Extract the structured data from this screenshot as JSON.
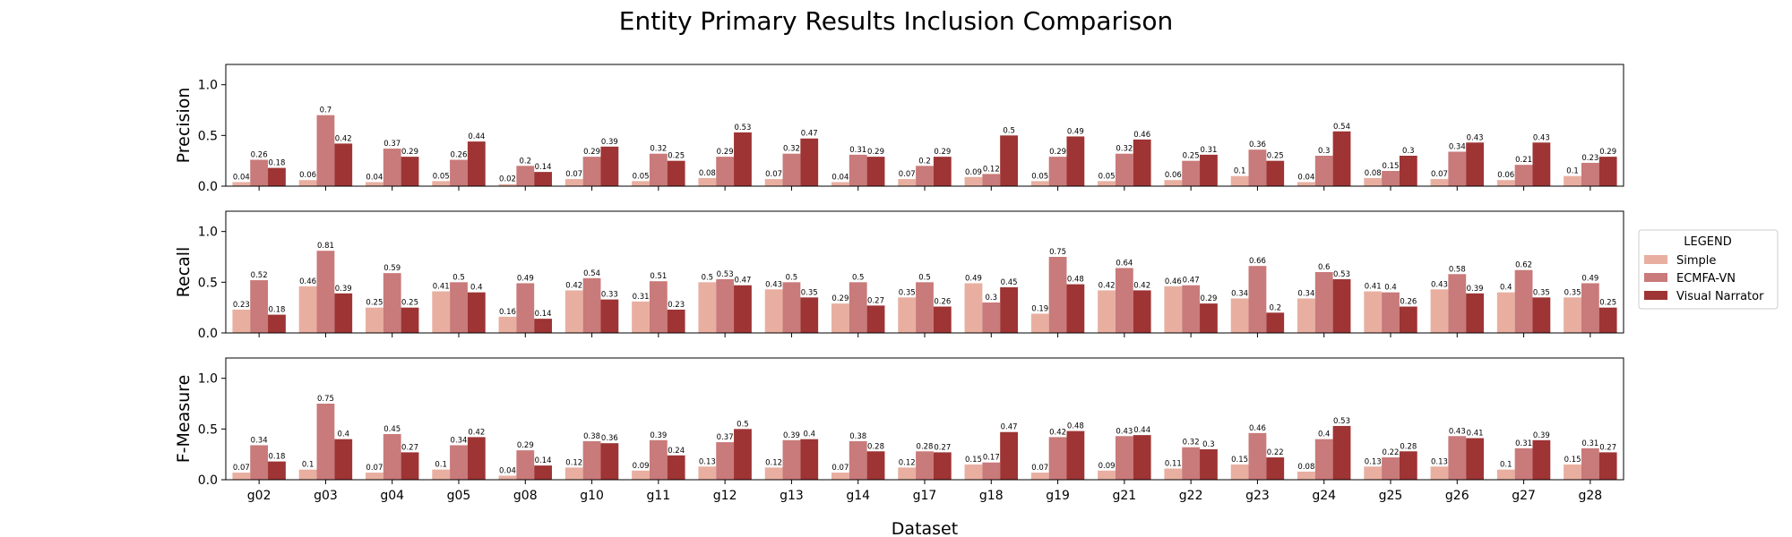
{
  "figure": {
    "title": "Entity Primary Results Inclusion Comparison",
    "xlabel": "Dataset"
  },
  "legend": {
    "title": "LEGEND",
    "placement": "right"
  },
  "colors": {
    "Simple": "#e8afa1",
    "ECMFA-VN": "#c97a7a",
    "Visual Narrator": "#9e3434"
  },
  "chart_data": [
    {
      "type": "bar",
      "ylabel": "Precision",
      "ylim": [
        0,
        1.2
      ],
      "yticks": [
        "0.0",
        "0.5",
        "1.0"
      ],
      "categories": [
        "g02",
        "g03",
        "g04",
        "g05",
        "g08",
        "g10",
        "g11",
        "g12",
        "g13",
        "g14",
        "g17",
        "g18",
        "g19",
        "g21",
        "g22",
        "g23",
        "g24",
        "g25",
        "g26",
        "g27",
        "g28"
      ],
      "series": [
        {
          "name": "Simple",
          "values": [
            0.04,
            0.06,
            0.04,
            0.05,
            0.02,
            0.07,
            0.05,
            0.08,
            0.07,
            0.04,
            0.07,
            0.09,
            0.05,
            0.05,
            0.06,
            0.1,
            0.04,
            0.08,
            0.07,
            0.06,
            0.1
          ]
        },
        {
          "name": "ECMFA-VN",
          "values": [
            0.26,
            0.7,
            0.37,
            0.26,
            0.2,
            0.29,
            0.32,
            0.29,
            0.32,
            0.31,
            0.2,
            0.12,
            0.29,
            0.32,
            0.25,
            0.36,
            0.3,
            0.15,
            0.34,
            0.21,
            0.23
          ]
        },
        {
          "name": "Visual Narrator",
          "values": [
            0.18,
            0.42,
            0.29,
            0.44,
            0.14,
            0.39,
            0.25,
            0.53,
            0.47,
            0.29,
            0.29,
            0.5,
            0.49,
            0.46,
            0.31,
            0.25,
            0.54,
            0.3,
            0.43,
            0.43,
            0.29
          ]
        }
      ]
    },
    {
      "type": "bar",
      "ylabel": "Recall",
      "ylim": [
        0,
        1.2
      ],
      "yticks": [
        "0.0",
        "0.5",
        "1.0"
      ],
      "categories": [
        "g02",
        "g03",
        "g04",
        "g05",
        "g08",
        "g10",
        "g11",
        "g12",
        "g13",
        "g14",
        "g17",
        "g18",
        "g19",
        "g21",
        "g22",
        "g23",
        "g24",
        "g25",
        "g26",
        "g27",
        "g28"
      ],
      "series": [
        {
          "name": "Simple",
          "values": [
            0.23,
            0.46,
            0.25,
            0.41,
            0.16,
            0.42,
            0.31,
            0.5,
            0.43,
            0.29,
            0.35,
            0.49,
            0.19,
            0.42,
            0.46,
            0.34,
            0.34,
            0.41,
            0.43,
            0.4,
            0.35
          ]
        },
        {
          "name": "ECMFA-VN",
          "values": [
            0.52,
            0.81,
            0.59,
            0.5,
            0.49,
            0.54,
            0.51,
            0.53,
            0.5,
            0.5,
            0.5,
            0.3,
            0.75,
            0.64,
            0.47,
            0.66,
            0.6,
            0.4,
            0.58,
            0.62,
            0.49
          ]
        },
        {
          "name": "Visual Narrator",
          "values": [
            0.18,
            0.39,
            0.25,
            0.4,
            0.14,
            0.33,
            0.23,
            0.47,
            0.35,
            0.27,
            0.26,
            0.45,
            0.48,
            0.42,
            0.29,
            0.2,
            0.53,
            0.26,
            0.39,
            0.35,
            0.25
          ]
        }
      ]
    },
    {
      "type": "bar",
      "ylabel": "F-Measure",
      "ylim": [
        0,
        1.2
      ],
      "yticks": [
        "0.0",
        "0.5",
        "1.0"
      ],
      "categories": [
        "g02",
        "g03",
        "g04",
        "g05",
        "g08",
        "g10",
        "g11",
        "g12",
        "g13",
        "g14",
        "g17",
        "g18",
        "g19",
        "g21",
        "g22",
        "g23",
        "g24",
        "g25",
        "g26",
        "g27",
        "g28"
      ],
      "series": [
        {
          "name": "Simple",
          "values": [
            0.07,
            0.1,
            0.07,
            0.1,
            0.04,
            0.12,
            0.09,
            0.13,
            0.12,
            0.07,
            0.12,
            0.15,
            0.07,
            0.09,
            0.11,
            0.15,
            0.08,
            0.13,
            0.13,
            0.1,
            0.15
          ]
        },
        {
          "name": "ECMFA-VN",
          "values": [
            0.34,
            0.75,
            0.45,
            0.34,
            0.29,
            0.38,
            0.39,
            0.37,
            0.39,
            0.38,
            0.28,
            0.17,
            0.42,
            0.43,
            0.32,
            0.46,
            0.4,
            0.22,
            0.43,
            0.31,
            0.31
          ]
        },
        {
          "name": "Visual Narrator",
          "values": [
            0.18,
            0.4,
            0.27,
            0.42,
            0.14,
            0.36,
            0.24,
            0.5,
            0.4,
            0.28,
            0.27,
            0.47,
            0.48,
            0.44,
            0.3,
            0.22,
            0.53,
            0.28,
            0.41,
            0.39,
            0.27
          ]
        }
      ]
    }
  ]
}
